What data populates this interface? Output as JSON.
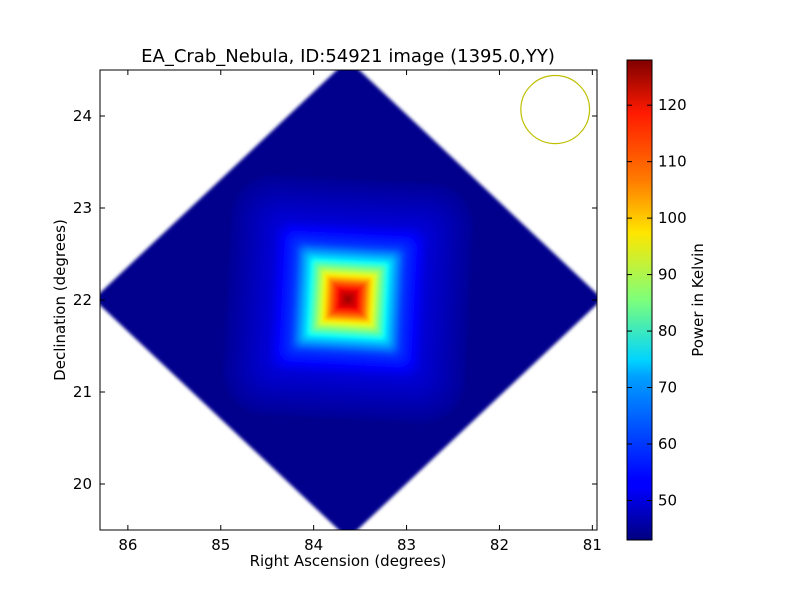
{
  "chart_data": {
    "type": "heatmap",
    "title": "EA_Crab_Nebula, ID:54921 image (1395.0,YY)",
    "xlabel": "Right Ascension (degrees)",
    "ylabel": "Declination (degrees)",
    "xlim": [
      86.3,
      80.95
    ],
    "ylim": [
      19.5,
      24.5
    ],
    "x_ticks": [
      86,
      85,
      84,
      83,
      82,
      81
    ],
    "y_ticks": [
      20,
      21,
      22,
      23,
      24
    ],
    "colormap": "jet",
    "colorbar": {
      "label": "Power in Kelvin",
      "range": [
        43,
        128
      ],
      "ticks": [
        50,
        60,
        70,
        80,
        90,
        100,
        110,
        120
      ]
    },
    "background_level": 44,
    "footprint": {
      "shape": "diamond",
      "center_ra": 83.63,
      "center_dec": 22.01,
      "half_width_ra": 2.63,
      "half_height_dec": 2.5
    },
    "source": {
      "name": "Crab Nebula",
      "ra": 83.63,
      "dec": 22.01,
      "peak": 128,
      "profile": [
        {
          "radius_deg": 0.0,
          "value": 128
        },
        {
          "radius_deg": 0.1,
          "value": 120
        },
        {
          "radius_deg": 0.2,
          "value": 108
        },
        {
          "radius_deg": 0.3,
          "value": 92
        },
        {
          "radius_deg": 0.45,
          "value": 72
        },
        {
          "radius_deg": 0.6,
          "value": 58
        },
        {
          "radius_deg": 0.85,
          "value": 50
        },
        {
          "radius_deg": 1.3,
          "value": 45
        }
      ]
    },
    "beam": {
      "ra": 81.4,
      "dec": 24.07,
      "radius_deg": 0.37,
      "color": "#bfbf00"
    },
    "grid": false
  }
}
